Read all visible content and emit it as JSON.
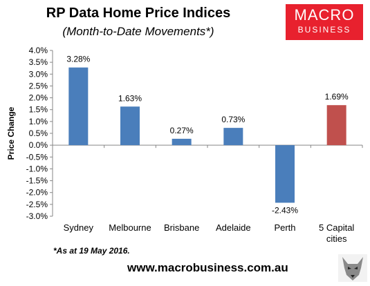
{
  "header": {
    "title": "RP Data Home Price Indices",
    "subtitle": "(Month-to-Date Movements*)"
  },
  "logo": {
    "line1": "MACRO",
    "line2": "BUSINESS"
  },
  "footnote": "*As at 19 May 2016.",
  "website": "www.macrobusiness.com.au",
  "chart_data": {
    "type": "bar",
    "categories": [
      "Sydney",
      "Melbourne",
      "Brisbane",
      "Adelaide",
      "Perth",
      "5 Capital cities"
    ],
    "values": [
      3.28,
      1.63,
      0.27,
      0.73,
      -2.43,
      1.69
    ],
    "data_labels": [
      "3.28%",
      "1.63%",
      "0.27%",
      "0.73%",
      "-2.43%",
      "1.69%"
    ],
    "ylabel": "Price Change",
    "ylim": [
      -3.0,
      4.0
    ],
    "yticks": [
      "4.0%",
      "3.5%",
      "3.0%",
      "2.5%",
      "2.0%",
      "1.5%",
      "1.0%",
      "0.5%",
      "0.0%",
      "-0.5%",
      "-1.0%",
      "-1.5%",
      "-2.0%",
      "-2.5%",
      "-3.0%"
    ],
    "grid": false,
    "colors": {
      "default": "#4a7ebb",
      "highlight": "#c0504d"
    },
    "highlight_index": 5
  }
}
